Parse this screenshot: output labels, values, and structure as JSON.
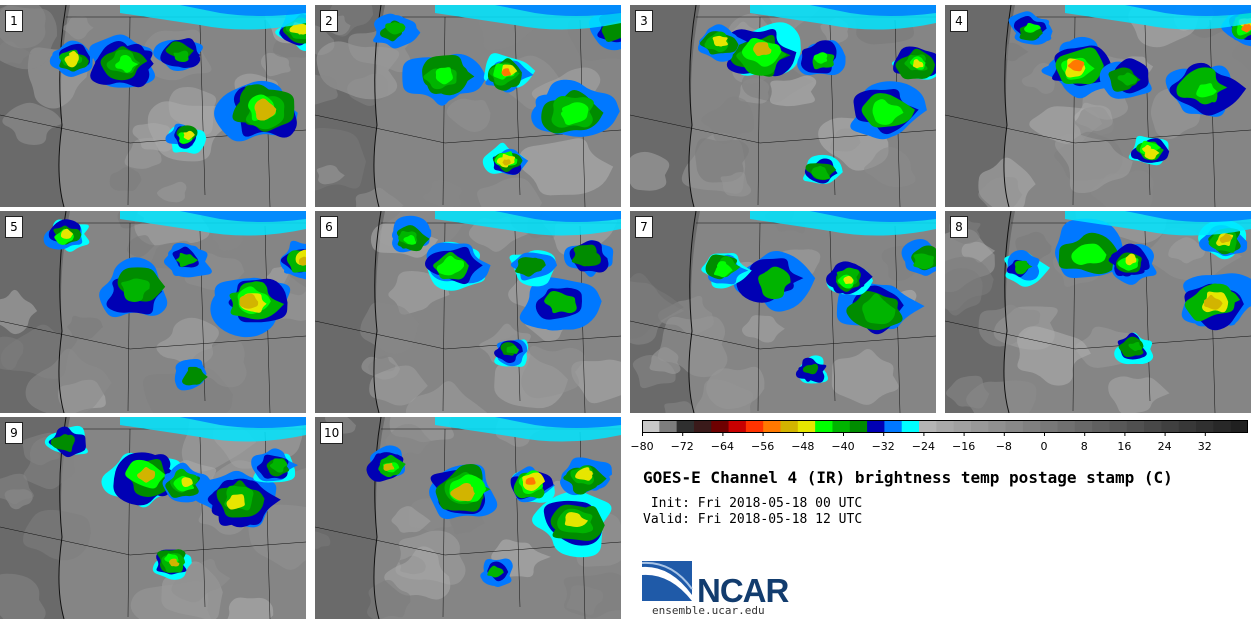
{
  "panels": [
    {
      "label": "1",
      "seed": 11
    },
    {
      "label": "2",
      "seed": 22
    },
    {
      "label": "3",
      "seed": 33
    },
    {
      "label": "4",
      "seed": 44
    },
    {
      "label": "5",
      "seed": 55
    },
    {
      "label": "6",
      "seed": 66
    },
    {
      "label": "7",
      "seed": 77
    },
    {
      "label": "8",
      "seed": 88
    },
    {
      "label": "9",
      "seed": 99
    },
    {
      "label": "10",
      "seed": 110
    }
  ],
  "colorbar": {
    "colors": [
      "#c8c8c8",
      "#7d7d7d",
      "#2f2f2f",
      "#3a1a1a",
      "#6e0000",
      "#c80000",
      "#ff3300",
      "#ff7800",
      "#d2b400",
      "#e6e600",
      "#00ff00",
      "#00b400",
      "#008c00",
      "#0000b4",
      "#0078ff",
      "#00ffff",
      "#b4b4b4",
      "#a8a8a8",
      "#a0a0a0",
      "#989898",
      "#909090",
      "#888888",
      "#808080",
      "#787878",
      "#707070",
      "#686868",
      "#606060",
      "#585858",
      "#505050",
      "#484848",
      "#404040",
      "#383838",
      "#303030",
      "#282828",
      "#202020"
    ],
    "ticks": [
      "−80",
      "−72",
      "−64",
      "−56",
      "−48",
      "−40",
      "−32",
      "−24",
      "−16",
      "−8",
      "0",
      "8",
      "16",
      "24",
      "32"
    ]
  },
  "title": "GOES-E Channel 4 (IR) brightness temp postage stamp (C)",
  "init": " Init: Fri 2018-05-18 00 UTC",
  "valid": "Valid: Fri 2018-05-18 12 UTC",
  "logo": {
    "word": "NCAR",
    "url": "ensemble.ucar.edu"
  }
}
